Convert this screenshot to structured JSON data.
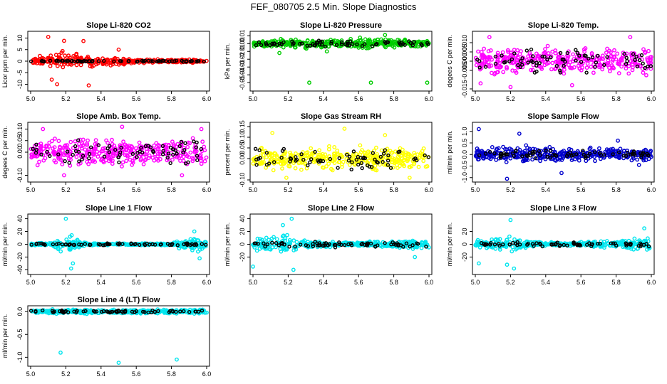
{
  "page": {
    "title": "FEF_080705  2.5 Min. Slope Diagnostics"
  },
  "chart_data": [
    {
      "type": "scatter",
      "title": "Slope Li-820 CO2",
      "ylabel": "Licor ppm per min.",
      "xlim": [
        5.0,
        6.0
      ],
      "xticks": [
        "5.0",
        "5.2",
        "5.4",
        "5.6",
        "5.8",
        "6.0"
      ],
      "ylim": [
        -12,
        12
      ],
      "yticks": [
        "-10",
        "-5",
        "0",
        "5",
        "10"
      ],
      "series_color": "#ff0000",
      "marker_color": "#000000",
      "envelope": [
        [
          5.0,
          1.0
        ],
        [
          5.08,
          3.5
        ],
        [
          5.2,
          5.0
        ],
        [
          5.3,
          4.0
        ],
        [
          5.45,
          2.5
        ],
        [
          5.6,
          1.0
        ],
        [
          5.8,
          0.8
        ],
        [
          6.0,
          0.8
        ]
      ],
      "outliers": [
        [
          5.1,
          10.5
        ],
        [
          5.15,
          -10
        ],
        [
          5.19,
          8.8
        ],
        [
          5.3,
          8.7
        ],
        [
          5.33,
          -10.5
        ],
        [
          5.5,
          5
        ],
        [
          5.12,
          -8
        ]
      ],
      "marker_spread": 0.3
    },
    {
      "type": "scatter",
      "title": "Slope Li-820 Pressure",
      "ylabel": "kPa per min.",
      "xlim": [
        5.0,
        6.0
      ],
      "xticks": [
        "5.0",
        "5.2",
        "5.4",
        "5.6",
        "5.8",
        "6.0"
      ],
      "ylim": [
        -0.058,
        0.013
      ],
      "yticks": [
        "-0.05",
        "-0.04",
        "-0.03",
        "-0.02",
        "-0.01",
        "0.00",
        "0.01"
      ],
      "series_color": "#00cc00",
      "marker_color": "#000000",
      "envelope": [
        [
          5.0,
          0.005
        ],
        [
          5.2,
          0.008
        ],
        [
          5.4,
          0.007
        ],
        [
          5.6,
          0.009
        ],
        [
          5.8,
          0.007
        ],
        [
          6.0,
          0.006
        ]
      ],
      "outliers": [
        [
          5.32,
          -0.05
        ],
        [
          5.67,
          -0.05
        ],
        [
          5.99,
          -0.05
        ],
        [
          5.75,
          0.011
        ],
        [
          5.15,
          -0.012
        ],
        [
          5.42,
          -0.01
        ]
      ],
      "marker_spread": 0.004
    },
    {
      "type": "scatter",
      "title": "Slope Li-820 Temp.",
      "ylabel": "degees C per min.",
      "xlim": [
        5.0,
        6.0
      ],
      "xticks": [
        "5.0",
        "5.2",
        "5.4",
        "5.6",
        "5.8",
        "6.0"
      ],
      "ylim": [
        -0.015,
        0.015
      ],
      "yticks": [
        "-0.015",
        "-0.005",
        "0.000",
        "0.005",
        "0.010"
      ],
      "series_color": "#ff00ff",
      "marker_color": "#000000",
      "envelope": [
        [
          5.0,
          0.009
        ],
        [
          5.5,
          0.009
        ],
        [
          6.0,
          0.009
        ]
      ],
      "outliers": [
        [
          5.08,
          0.013
        ],
        [
          5.2,
          -0.014
        ],
        [
          5.55,
          -0.013
        ],
        [
          5.88,
          0.013
        ],
        [
          5.03,
          -0.012
        ]
      ],
      "marker_spread": 0.007
    },
    {
      "type": "scatter",
      "title": "Slope Amb. Box Temp.",
      "ylabel": "degees C per min.",
      "xlim": [
        5.0,
        6.0
      ],
      "xticks": [
        "5.0",
        "5.2",
        "5.4",
        "5.6",
        "5.8",
        "6.0"
      ],
      "ylim": [
        -0.12,
        0.12
      ],
      "yticks": [
        "-0.10",
        "0.00",
        "0.05",
        "0.10"
      ],
      "series_color": "#ff00ff",
      "marker_color": "#000000",
      "envelope": [
        [
          5.0,
          0.075
        ],
        [
          5.5,
          0.075
        ],
        [
          6.0,
          0.075
        ]
      ],
      "outliers": [
        [
          5.07,
          0.1
        ],
        [
          5.19,
          -0.1
        ],
        [
          5.52,
          0.11
        ],
        [
          5.86,
          -0.1
        ],
        [
          5.97,
          0.1
        ]
      ],
      "marker_spread": 0.06
    },
    {
      "type": "scatter",
      "title": "Slope Gas Stream RH",
      "ylabel": "percent per min.",
      "xlim": [
        5.0,
        6.0
      ],
      "xticks": [
        "5.0",
        "5.2",
        "5.4",
        "5.6",
        "5.8",
        "6.0"
      ],
      "ylim": [
        -0.1,
        0.16
      ],
      "yticks": [
        "-0.10",
        "0.00",
        "0.05",
        "0.10",
        "0.15"
      ],
      "series_color": "#ffff00",
      "marker_color": "#000000",
      "envelope": [
        [
          5.0,
          0.065
        ],
        [
          5.5,
          0.07
        ],
        [
          6.0,
          0.065
        ]
      ],
      "outliers": [
        [
          5.11,
          0.12
        ],
        [
          5.19,
          -0.09
        ],
        [
          5.52,
          0.14
        ],
        [
          5.75,
          0.11
        ],
        [
          5.89,
          -0.09
        ]
      ],
      "marker_spread": 0.055
    },
    {
      "type": "scatter",
      "title": "Slope Sample Flow",
      "ylabel": "ml/min per min.",
      "xlim": [
        5.0,
        6.0
      ],
      "xticks": [
        "5.0",
        "5.2",
        "5.4",
        "5.6",
        "5.8",
        "6.0"
      ],
      "ylim": [
        -1.1,
        1.3
      ],
      "yticks": [
        "-1.0",
        "-0.5",
        "0.0",
        "0.5",
        "1.0"
      ],
      "series_color": "#0000cc",
      "marker_color": "#000000",
      "envelope": [
        [
          5.0,
          0.35
        ],
        [
          5.2,
          0.5
        ],
        [
          5.4,
          0.35
        ],
        [
          5.7,
          0.35
        ],
        [
          6.0,
          0.35
        ]
      ],
      "outliers": [
        [
          5.02,
          1.1
        ],
        [
          5.18,
          -1.05
        ],
        [
          5.25,
          0.9
        ],
        [
          5.49,
          -0.8
        ],
        [
          5.81,
          0.6
        ],
        [
          5.93,
          -0.45
        ]
      ],
      "marker_spread": 0.2
    },
    {
      "type": "scatter",
      "title": "Slope Line 1 Flow",
      "ylabel": "ml/min per min.",
      "xlim": [
        5.0,
        6.0
      ],
      "xticks": [
        "5.0",
        "5.2",
        "5.4",
        "5.6",
        "5.8",
        "6.0"
      ],
      "ylim": [
        -44,
        44
      ],
      "yticks": [
        "-40",
        "-20",
        "0",
        "20",
        "40"
      ],
      "series_color": "#00e5ee",
      "marker_color": "#000000",
      "envelope": [
        [
          5.0,
          2
        ],
        [
          5.12,
          4
        ],
        [
          5.22,
          25
        ],
        [
          5.28,
          6
        ],
        [
          5.4,
          2
        ],
        [
          5.8,
          2
        ],
        [
          5.9,
          15
        ],
        [
          6.0,
          12
        ]
      ],
      "outliers": [
        [
          5.2,
          40
        ],
        [
          5.23,
          -38
        ],
        [
          5.24,
          -30
        ],
        [
          5.96,
          -22
        ],
        [
          5.93,
          20
        ]
      ],
      "marker_spread": 2
    },
    {
      "type": "scatter",
      "title": "Slope Line 2 Flow",
      "ylabel": "ml/min per min.",
      "xlim": [
        5.0,
        6.0
      ],
      "xticks": [
        "5.0",
        "5.2",
        "5.4",
        "5.6",
        "5.8",
        "6.0"
      ],
      "ylim": [
        -44,
        44
      ],
      "yticks": [
        "-20",
        "0",
        "20",
        "40"
      ],
      "series_color": "#00e5ee",
      "marker_color": "#000000",
      "envelope": [
        [
          5.0,
          12
        ],
        [
          5.1,
          12
        ],
        [
          5.2,
          20
        ],
        [
          5.3,
          8
        ],
        [
          5.5,
          3
        ],
        [
          5.9,
          8
        ],
        [
          6.0,
          12
        ]
      ],
      "outliers": [
        [
          5.22,
          40
        ],
        [
          5.17,
          30
        ],
        [
          5.23,
          -40
        ],
        [
          5.0,
          -35
        ],
        [
          5.92,
          -20
        ]
      ],
      "marker_spread": 5
    },
    {
      "type": "scatter",
      "title": "Slope Line 3 Flow",
      "ylabel": "ml/min per min.",
      "xlim": [
        5.0,
        6.0
      ],
      "xticks": [
        "5.0",
        "5.2",
        "5.4",
        "5.6",
        "5.8",
        "6.0"
      ],
      "ylim": [
        -44,
        44
      ],
      "yticks": [
        "-20",
        "0",
        "20"
      ],
      "series_color": "#00e5ee",
      "marker_color": "#000000",
      "envelope": [
        [
          5.0,
          10
        ],
        [
          5.1,
          12
        ],
        [
          5.2,
          20
        ],
        [
          5.3,
          8
        ],
        [
          5.5,
          3
        ],
        [
          5.9,
          10
        ],
        [
          6.0,
          10
        ]
      ],
      "outliers": [
        [
          5.2,
          38
        ],
        [
          5.22,
          -38
        ],
        [
          5.18,
          -32
        ],
        [
          5.02,
          -30
        ],
        [
          5.96,
          25
        ]
      ],
      "marker_spread": 4
    },
    {
      "type": "scatter",
      "title": "Slope Line 4 (LT) Flow",
      "ylabel": "ml/min per min.",
      "xlim": [
        5.0,
        6.0
      ],
      "xticks": [
        "5.0",
        "5.2",
        "5.4",
        "5.6",
        "5.8",
        "6.0"
      ],
      "ylim": [
        -1.15,
        0.08
      ],
      "yticks": [
        "-1.0",
        "-0.5",
        "0.0"
      ],
      "series_color": "#00e5ee",
      "marker_color": "#000000",
      "envelope": [
        [
          5.0,
          0.06
        ],
        [
          5.5,
          0.06
        ],
        [
          6.0,
          0.06
        ]
      ],
      "outliers": [
        [
          5.17,
          -0.9
        ],
        [
          5.5,
          -1.12
        ],
        [
          5.83,
          -1.05
        ]
      ],
      "marker_spread": 0.03
    }
  ]
}
